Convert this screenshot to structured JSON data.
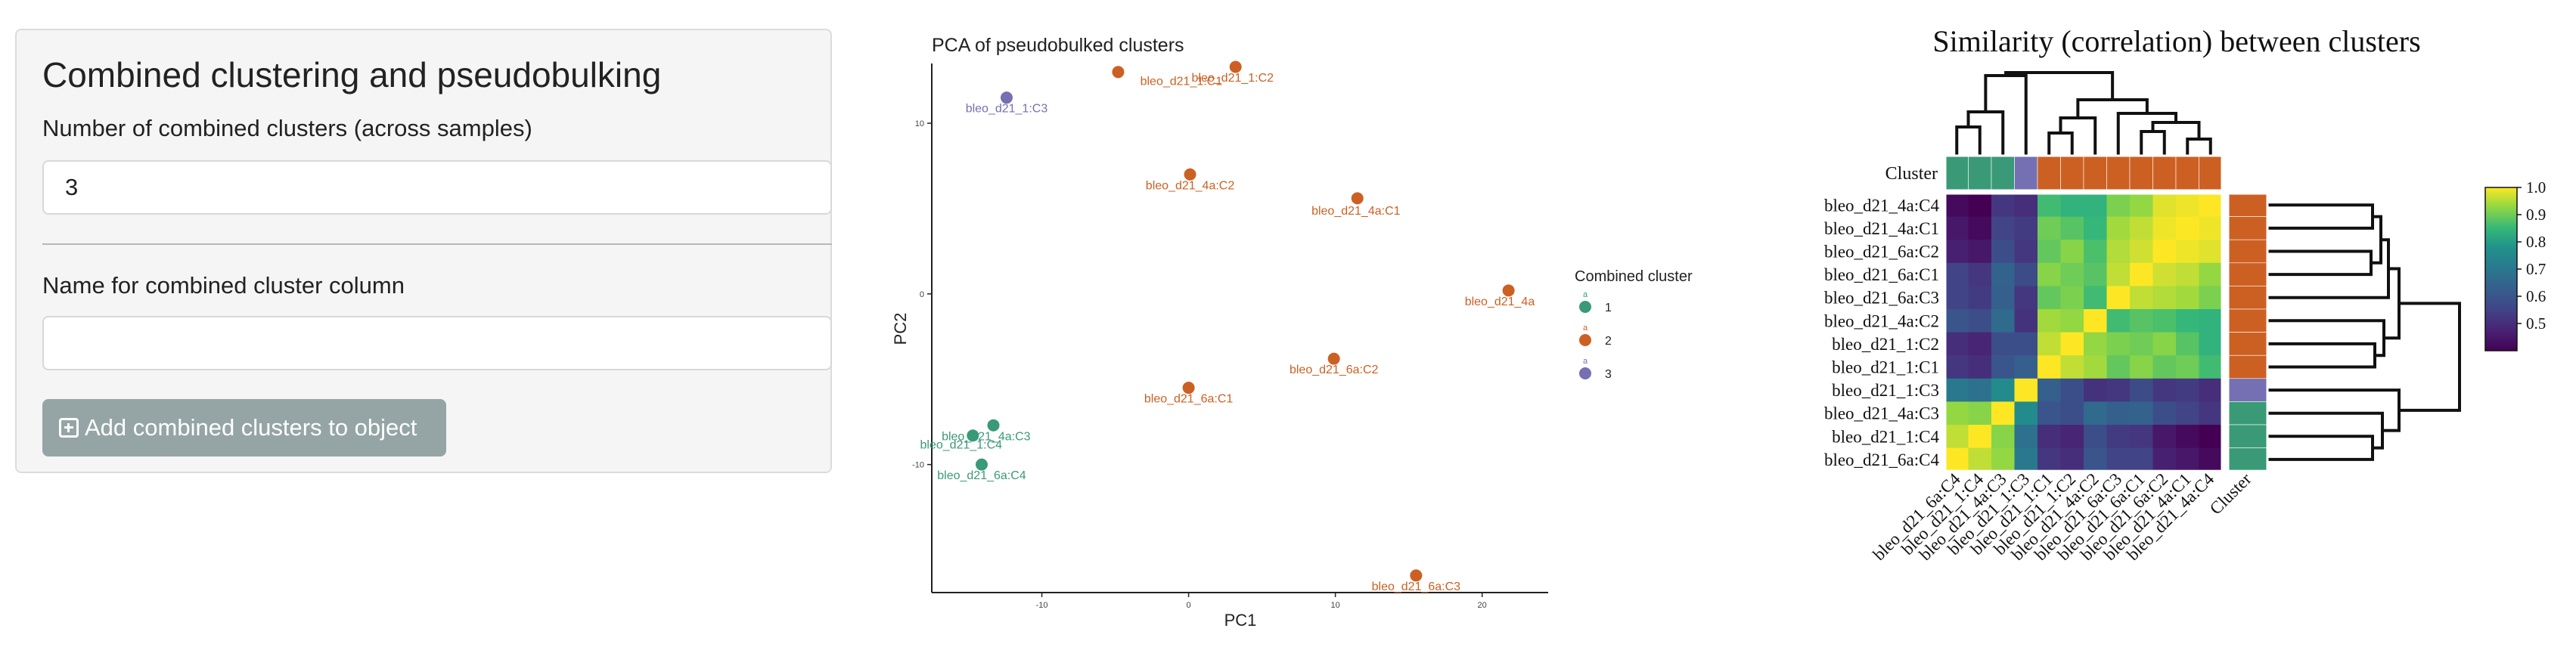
{
  "form": {
    "title": "Combined clustering and pseudobulking",
    "num_clusters_label": "Number of combined clusters (across samples)",
    "num_clusters_value": "3",
    "name_label": "Name for combined cluster column",
    "name_value": "",
    "button_label": "Add combined clusters to object"
  },
  "chart_data": [
    {
      "type": "scatter",
      "title": "PCA of pseudobulked clusters",
      "xlabel": "PC1",
      "ylabel": "PC2",
      "xlim": [
        -17.5,
        24.5
      ],
      "ylim": [
        -17.5,
        13.5
      ],
      "xticks": [
        -10,
        0,
        10,
        20
      ],
      "xtick_labels": [
        "-10",
        "0",
        "10",
        "20"
      ],
      "yticks": [
        -10,
        0,
        10
      ],
      "ytick_labels": [
        "-10",
        "0",
        "10"
      ],
      "grid": false,
      "legend": {
        "title": "Combined cluster",
        "position": "right",
        "items": [
          {
            "label": "1",
            "key": "a",
            "color": "#3a9a77"
          },
          {
            "label": "2",
            "key": "a",
            "color": "#cc6023"
          },
          {
            "label": "3",
            "key": "a",
            "color": "#7570b3"
          }
        ]
      },
      "points": [
        {
          "label": "bleo_d21_1:C1",
          "x": -4.8,
          "y": 13.0,
          "cluster": 2,
          "lx": -0.5,
          "ly": 12.5
        },
        {
          "label": "bleo_d21_1:C2",
          "x": 3.2,
          "y": 13.3,
          "cluster": 2,
          "lx": 3.0,
          "ly": 12.7
        },
        {
          "label": "bleo_d21_1:C3",
          "x": -12.4,
          "y": 11.5,
          "cluster": 3,
          "lx": -12.4,
          "ly": 10.9
        },
        {
          "label": "bleo_d21_4a:C2",
          "x": 0.1,
          "y": 7.0,
          "cluster": 2,
          "lx": 0.1,
          "ly": 6.4
        },
        {
          "label": "bleo_d21_4a:C1",
          "x": 11.5,
          "y": 5.6,
          "cluster": 2,
          "lx": 11.4,
          "ly": 4.9
        },
        {
          "label": "bleo_d21_4a",
          "x": 21.8,
          "y": 0.2,
          "cluster": 2,
          "lx": 21.2,
          "ly": -0.4
        },
        {
          "label": "bleo_d21_6a:C2",
          "x": 9.9,
          "y": -3.8,
          "cluster": 2,
          "lx": 9.9,
          "ly": -4.4
        },
        {
          "label": "bleo_d21_6a:C1",
          "x": 0.0,
          "y": -5.5,
          "cluster": 2,
          "lx": 0.0,
          "ly": -6.1
        },
        {
          "label": "bleo_d21_6a:C3",
          "x": 15.5,
          "y": -16.5,
          "cluster": 2,
          "lx": 15.5,
          "ly": -17.1
        },
        {
          "label": "bleo_d21_4a:C3",
          "x": -13.3,
          "y": -7.7,
          "cluster": 1,
          "lx": -13.8,
          "ly": -8.3
        },
        {
          "label": "bleo_d21_1:C4",
          "x": -14.7,
          "y": -8.3,
          "cluster": 1,
          "lx": -15.5,
          "ly": -8.8
        },
        {
          "label": "bleo_d21_6a:C4",
          "x": -14.1,
          "y": -10.0,
          "cluster": 1,
          "lx": -14.1,
          "ly": -10.6
        }
      ]
    },
    {
      "type": "heatmap",
      "title": "Similarity (correlation) between clusters",
      "annotation_label": "Cluster",
      "rows": [
        "bleo_d21_4a:C4",
        "bleo_d21_4a:C1",
        "bleo_d21_6a:C2",
        "bleo_d21_6a:C1",
        "bleo_d21_6a:C3",
        "bleo_d21_4a:C2",
        "bleo_d21_1:C2",
        "bleo_d21_1:C1",
        "bleo_d21_1:C3",
        "bleo_d21_4a:C3",
        "bleo_d21_1:C4",
        "bleo_d21_6a:C4"
      ],
      "columns": [
        "bleo_d21_6a:C4",
        "bleo_d21_1:C4",
        "bleo_d21_4a:C3",
        "bleo_d21_1:C3",
        "bleo_d21_1:C1",
        "bleo_d21_1:C2",
        "bleo_d21_4a:C2",
        "bleo_d21_6a:C3",
        "bleo_d21_6a:C1",
        "bleo_d21_6a:C2",
        "bleo_d21_4a:C1",
        "bleo_d21_4a:C4"
      ],
      "row_clusters": [
        2,
        2,
        2,
        2,
        2,
        2,
        2,
        2,
        3,
        1,
        1,
        1
      ],
      "column_clusters": [
        1,
        1,
        1,
        3,
        2,
        2,
        2,
        2,
        2,
        2,
        2,
        2
      ],
      "cluster_colors": {
        "1": "#3a9a77",
        "2": "#cc6023",
        "3": "#7570b3"
      },
      "values": [
        [
          0.42,
          0.4,
          0.52,
          0.5,
          0.86,
          0.84,
          0.84,
          0.91,
          0.93,
          0.98,
          0.99,
          1.0
        ],
        [
          0.45,
          0.42,
          0.55,
          0.53,
          0.9,
          0.88,
          0.85,
          0.94,
          0.96,
          0.99,
          1.0,
          0.99
        ],
        [
          0.47,
          0.45,
          0.58,
          0.52,
          0.89,
          0.92,
          0.87,
          0.95,
          0.97,
          1.0,
          0.99,
          0.98
        ],
        [
          0.55,
          0.52,
          0.64,
          0.57,
          0.92,
          0.9,
          0.88,
          0.96,
          1.0,
          0.97,
          0.96,
          0.93
        ],
        [
          0.55,
          0.53,
          0.63,
          0.52,
          0.89,
          0.91,
          0.86,
          1.0,
          0.96,
          0.95,
          0.94,
          0.91
        ],
        [
          0.6,
          0.58,
          0.66,
          0.51,
          0.94,
          0.93,
          1.0,
          0.86,
          0.88,
          0.87,
          0.85,
          0.84
        ],
        [
          0.5,
          0.48,
          0.58,
          0.58,
          0.96,
          1.0,
          0.93,
          0.91,
          0.9,
          0.92,
          0.88,
          0.84
        ],
        [
          0.52,
          0.5,
          0.6,
          0.63,
          1.0,
          0.96,
          0.94,
          0.89,
          0.92,
          0.89,
          0.9,
          0.86
        ],
        [
          0.7,
          0.68,
          0.76,
          1.0,
          0.63,
          0.58,
          0.51,
          0.52,
          0.57,
          0.52,
          0.53,
          0.5
        ],
        [
          0.93,
          0.92,
          1.0,
          0.76,
          0.6,
          0.58,
          0.66,
          0.63,
          0.64,
          0.58,
          0.55,
          0.52
        ],
        [
          0.96,
          1.0,
          0.92,
          0.68,
          0.5,
          0.48,
          0.58,
          0.53,
          0.52,
          0.45,
          0.42,
          0.4
        ],
        [
          1.0,
          0.96,
          0.93,
          0.7,
          0.52,
          0.5,
          0.6,
          0.55,
          0.55,
          0.47,
          0.45,
          0.42
        ]
      ],
      "colorbar": {
        "min": 0.4,
        "max": 1.0,
        "ticks": [
          0.5,
          0.6,
          0.7,
          0.8,
          0.9,
          1.0
        ],
        "tick_labels": [
          "0.5",
          "0.6",
          "0.7",
          "0.8",
          "0.9",
          "1.0"
        ],
        "colormap": "viridis"
      }
    }
  ]
}
